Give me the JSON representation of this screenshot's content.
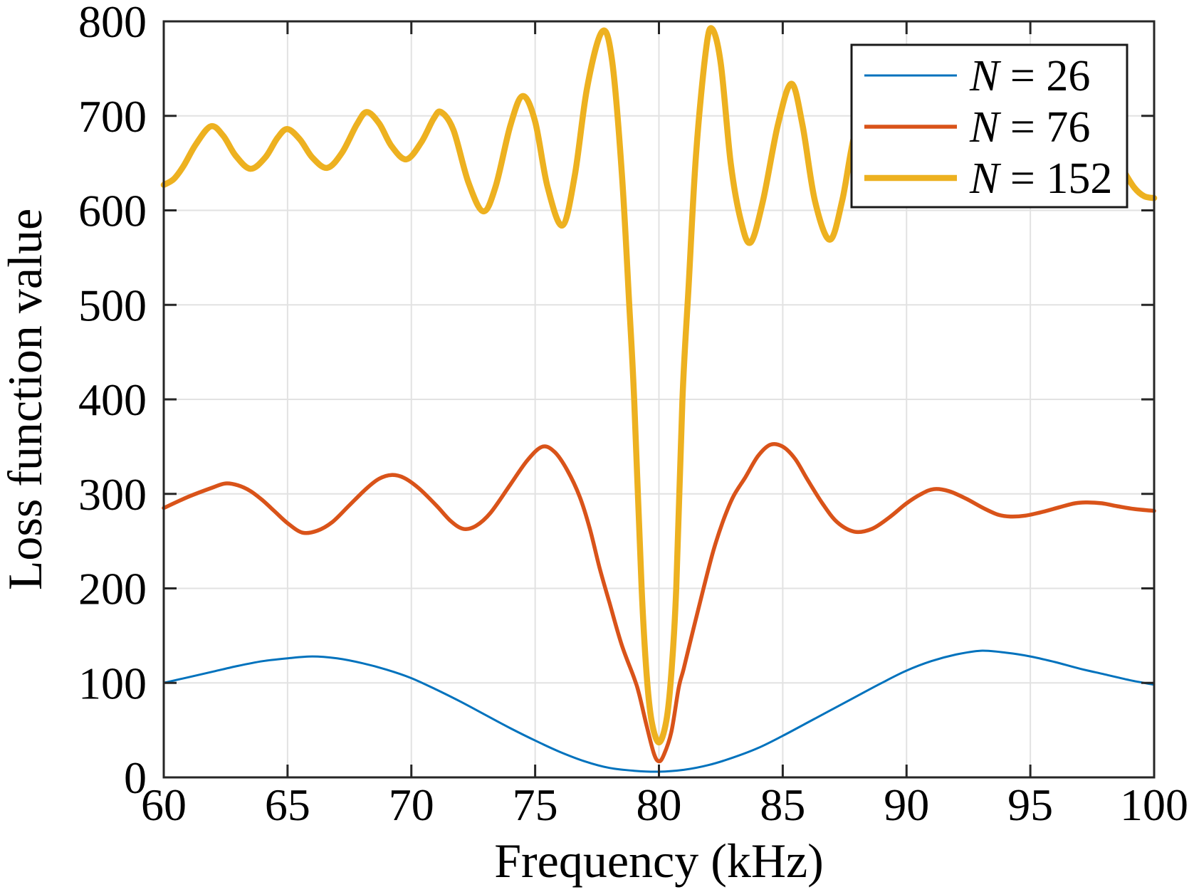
{
  "figure": {
    "background": "#ffffff",
    "axis_color": "#262626",
    "grid_color": "#e2e2e2",
    "text_color": "#000000"
  },
  "chart_data": {
    "type": "line",
    "title": "",
    "xlabel": "Frequency (kHz)",
    "ylabel": "Loss function value",
    "xlim": [
      60,
      100
    ],
    "ylim": [
      0,
      800
    ],
    "x_ticks": [
      60,
      65,
      70,
      75,
      80,
      85,
      90,
      95,
      100
    ],
    "y_ticks": [
      0,
      100,
      200,
      300,
      400,
      500,
      600,
      700,
      800
    ],
    "grid": true,
    "legend_position": "top-right",
    "legend_border_color": "#1a1a1a",
    "series": [
      {
        "name": "N = 26",
        "color": "#0072BD",
        "line_width": 3,
        "points": [
          [
            60,
            100
          ],
          [
            61,
            106
          ],
          [
            62,
            112
          ],
          [
            63,
            118
          ],
          [
            64,
            123
          ],
          [
            65,
            126
          ],
          [
            66,
            128
          ],
          [
            67,
            126
          ],
          [
            68,
            121
          ],
          [
            69,
            114
          ],
          [
            70,
            105
          ],
          [
            71,
            93
          ],
          [
            72,
            80
          ],
          [
            73,
            66
          ],
          [
            74,
            52
          ],
          [
            75,
            39
          ],
          [
            76,
            27
          ],
          [
            77,
            17
          ],
          [
            78,
            10
          ],
          [
            79,
            7
          ],
          [
            80,
            6
          ],
          [
            81,
            8
          ],
          [
            82,
            13
          ],
          [
            83,
            21
          ],
          [
            84,
            31
          ],
          [
            85,
            44
          ],
          [
            86,
            58
          ],
          [
            87,
            72
          ],
          [
            88,
            86
          ],
          [
            89,
            100
          ],
          [
            90,
            113
          ],
          [
            91,
            123
          ],
          [
            92,
            130
          ],
          [
            93,
            134
          ],
          [
            94,
            132
          ],
          [
            95,
            128
          ],
          [
            96,
            122
          ],
          [
            97,
            115
          ],
          [
            98,
            109
          ],
          [
            99,
            103
          ],
          [
            100,
            98
          ]
        ]
      },
      {
        "name": "N = 76",
        "color": "#D95319",
        "line_width": 5.5,
        "points": [
          [
            60,
            285
          ],
          [
            61,
            297
          ],
          [
            62,
            307
          ],
          [
            62.5,
            311
          ],
          [
            63,
            309
          ],
          [
            63.5,
            303
          ],
          [
            64,
            293
          ],
          [
            64.5,
            281
          ],
          [
            65,
            269
          ],
          [
            65.6,
            259
          ],
          [
            66.2,
            261
          ],
          [
            66.8,
            270
          ],
          [
            67.5,
            288
          ],
          [
            68.2,
            306
          ],
          [
            68.7,
            316
          ],
          [
            69.2,
            320
          ],
          [
            69.7,
            317
          ],
          [
            70.3,
            306
          ],
          [
            71,
            288
          ],
          [
            71.6,
            271
          ],
          [
            72.1,
            263
          ],
          [
            72.6,
            266
          ],
          [
            73.2,
            280
          ],
          [
            74,
            310
          ],
          [
            74.7,
            336
          ],
          [
            75.3,
            350
          ],
          [
            75.8,
            344
          ],
          [
            76.3,
            325
          ],
          [
            76.8,
            297
          ],
          [
            77.2,
            264
          ],
          [
            77.6,
            222
          ],
          [
            78,
            185
          ],
          [
            78.5,
            140
          ],
          [
            79,
            105
          ],
          [
            79.2,
            88
          ],
          [
            79.5,
            55
          ],
          [
            79.8,
            25
          ],
          [
            80,
            17
          ],
          [
            80.2,
            24
          ],
          [
            80.5,
            48
          ],
          [
            80.8,
            95
          ],
          [
            81,
            115
          ],
          [
            81.4,
            158
          ],
          [
            81.8,
            200
          ],
          [
            82.2,
            240
          ],
          [
            82.6,
            272
          ],
          [
            83,
            297
          ],
          [
            83.5,
            318
          ],
          [
            84,
            340
          ],
          [
            84.5,
            352
          ],
          [
            85,
            350
          ],
          [
            85.5,
            337
          ],
          [
            86,
            315
          ],
          [
            86.6,
            290
          ],
          [
            87.2,
            270
          ],
          [
            87.9,
            260
          ],
          [
            88.6,
            263
          ],
          [
            89.3,
            275
          ],
          [
            90,
            290
          ],
          [
            90.6,
            300
          ],
          [
            91.1,
            305
          ],
          [
            91.7,
            303
          ],
          [
            92.4,
            295
          ],
          [
            93.1,
            285
          ],
          [
            93.7,
            278
          ],
          [
            94.2,
            276
          ],
          [
            94.8,
            277
          ],
          [
            95.5,
            281
          ],
          [
            96.2,
            286
          ],
          [
            96.8,
            290
          ],
          [
            97.3,
            291
          ],
          [
            97.9,
            290
          ],
          [
            98.5,
            287
          ],
          [
            99.2,
            284
          ],
          [
            100,
            282
          ]
        ]
      },
      {
        "name": "N = 152",
        "color": "#EDB120",
        "line_width": 8.5,
        "points": [
          [
            60,
            627
          ],
          [
            60.4,
            633
          ],
          [
            60.8,
            647
          ],
          [
            61.3,
            670
          ],
          [
            61.9,
            689
          ],
          [
            62.4,
            679
          ],
          [
            62.9,
            658
          ],
          [
            63.5,
            644
          ],
          [
            64.1,
            656
          ],
          [
            64.6,
            677
          ],
          [
            65,
            686
          ],
          [
            65.5,
            675
          ],
          [
            66,
            656
          ],
          [
            66.6,
            645
          ],
          [
            67.2,
            661
          ],
          [
            67.8,
            691
          ],
          [
            68.2,
            704
          ],
          [
            68.7,
            692
          ],
          [
            69.2,
            668
          ],
          [
            69.8,
            654
          ],
          [
            70.4,
            672
          ],
          [
            70.9,
            697
          ],
          [
            71.2,
            704
          ],
          [
            71.7,
            685
          ],
          [
            72.3,
            630
          ],
          [
            72.9,
            599
          ],
          [
            73.4,
            625
          ],
          [
            74,
            690
          ],
          [
            74.5,
            721
          ],
          [
            75,
            694
          ],
          [
            75.5,
            625
          ],
          [
            76.1,
            584
          ],
          [
            76.6,
            637
          ],
          [
            77.1,
            730
          ],
          [
            77.7,
            789
          ],
          [
            78.1,
            760
          ],
          [
            78.5,
            640
          ],
          [
            78.8,
            500
          ],
          [
            79,
            400
          ],
          [
            79.3,
            200
          ],
          [
            79.5,
            110
          ],
          [
            79.7,
            60
          ],
          [
            80,
            37
          ],
          [
            80.3,
            60
          ],
          [
            80.5,
            110
          ],
          [
            80.7,
            200
          ],
          [
            80.95,
            400
          ],
          [
            81.2,
            520
          ],
          [
            81.5,
            660
          ],
          [
            81.9,
            770
          ],
          [
            82.15,
            792
          ],
          [
            82.5,
            755
          ],
          [
            82.9,
            650
          ],
          [
            83.3,
            590
          ],
          [
            83.7,
            566
          ],
          [
            84.2,
            610
          ],
          [
            84.8,
            690
          ],
          [
            85.35,
            734
          ],
          [
            85.8,
            690
          ],
          [
            86.3,
            610
          ],
          [
            86.9,
            569
          ],
          [
            87.4,
            610
          ],
          [
            87.9,
            680
          ],
          [
            88.5,
            715
          ],
          [
            89,
            690
          ],
          [
            89.6,
            640
          ],
          [
            90.2,
            615
          ],
          [
            90.8,
            650
          ],
          [
            91.4,
            690
          ],
          [
            91.9,
            700
          ],
          [
            92.5,
            670
          ],
          [
            93.1,
            640
          ],
          [
            93.7,
            635
          ],
          [
            94.3,
            660
          ],
          [
            94.9,
            680
          ],
          [
            95.4,
            670
          ],
          [
            96,
            650
          ],
          [
            96.6,
            640
          ],
          [
            97.2,
            655
          ],
          [
            97.8,
            672
          ],
          [
            98.3,
            660
          ],
          [
            98.76,
            642
          ],
          [
            99.2,
            624
          ],
          [
            99.6,
            615
          ],
          [
            100,
            613
          ]
        ]
      }
    ]
  }
}
